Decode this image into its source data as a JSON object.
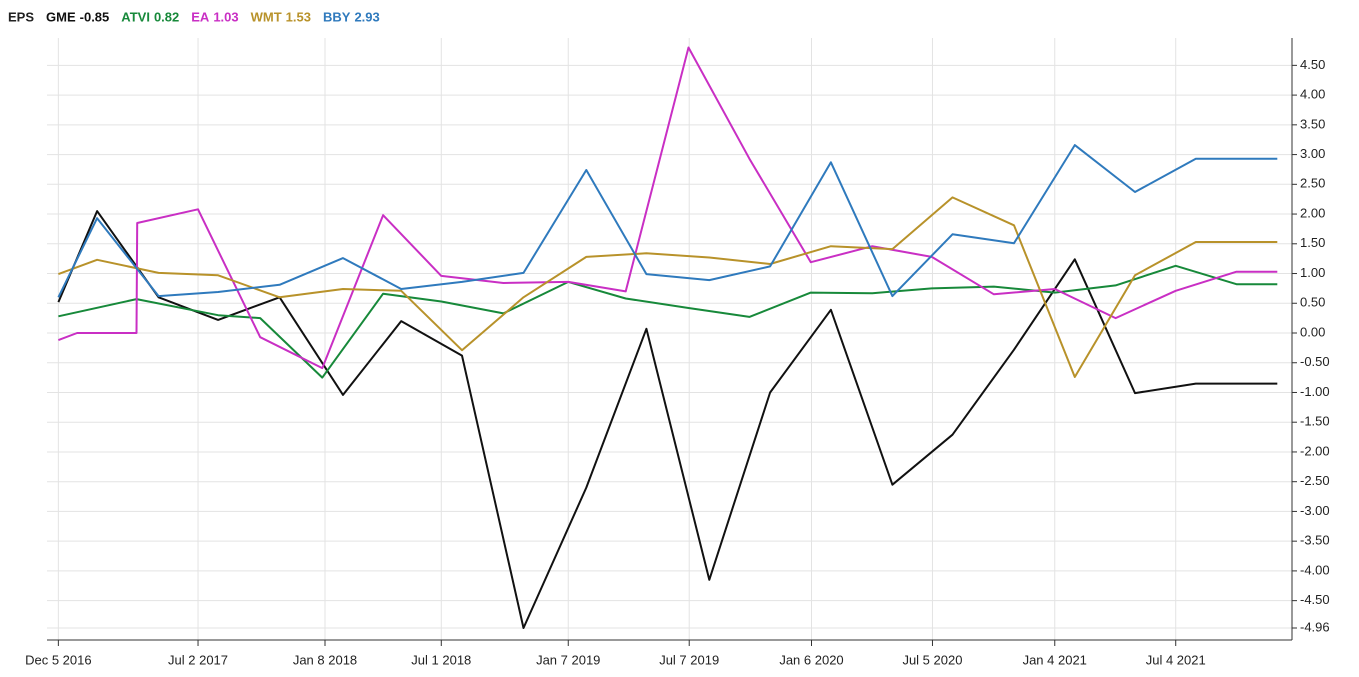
{
  "chart_data": {
    "type": "line",
    "legend_title": "EPS",
    "xlim": [
      "2016-11-18",
      "2021-12-25"
    ],
    "xticks": [
      {
        "value": "2016-12-05",
        "label": "Dec 5 2016"
      },
      {
        "value": "2017-07-02",
        "label": "Jul 2 2017"
      },
      {
        "value": "2018-01-08",
        "label": "Jan 8 2018"
      },
      {
        "value": "2018-07-01",
        "label": "Jul 1 2018"
      },
      {
        "value": "2019-01-07",
        "label": "Jan 7 2019"
      },
      {
        "value": "2019-07-07",
        "label": "Jul 7 2019"
      },
      {
        "value": "2020-01-06",
        "label": "Jan 6 2020"
      },
      {
        "value": "2020-07-05",
        "label": "Jul 5 2020"
      },
      {
        "value": "2021-01-04",
        "label": "Jan 4 2021"
      },
      {
        "value": "2021-07-04",
        "label": "Jul 4 2021"
      }
    ],
    "ylim": [
      -4.96,
      4.96
    ],
    "yticks": [
      {
        "value": 4.5,
        "label": "4.50"
      },
      {
        "value": 4,
        "label": "4.00"
      },
      {
        "value": 3.5,
        "label": "3.50"
      },
      {
        "value": 3,
        "label": "3.00"
      },
      {
        "value": 2.5,
        "label": "2.50"
      },
      {
        "value": 2,
        "label": "2.00"
      },
      {
        "value": 1.5,
        "label": "1.50"
      },
      {
        "value": 1,
        "label": "1.00"
      },
      {
        "value": 0.5,
        "label": "0.50"
      },
      {
        "value": 0,
        "label": "0.00"
      },
      {
        "value": -0.5,
        "label": "-0.50"
      },
      {
        "value": -1,
        "label": "-1.00"
      },
      {
        "value": -1.5,
        "label": "-1.50"
      },
      {
        "value": -2,
        "label": "-2.00"
      },
      {
        "value": -2.5,
        "label": "-2.50"
      },
      {
        "value": -3,
        "label": "-3.00"
      },
      {
        "value": -3.5,
        "label": "-3.50"
      },
      {
        "value": -4,
        "label": "-4.00"
      },
      {
        "value": -4.5,
        "label": "-4.50"
      },
      -4.96
    ],
    "grid": true,
    "series": [
      {
        "name": "GME",
        "color": "#111111",
        "x": [
          "2016-12-05",
          "2017-02-01",
          "2017-05-04",
          "2017-08-01",
          "2017-11-01",
          "2018-02-04",
          "2018-05-02",
          "2018-08-01",
          "2018-11-01",
          "2019-02-03",
          "2019-05-04",
          "2019-08-06",
          "2019-11-05",
          "2020-02-04",
          "2020-05-06",
          "2020-08-04",
          "2020-11-04",
          "2021-02-03",
          "2021-05-04",
          "2021-08-03",
          "2021-12-03"
        ],
        "values": [
          0.52,
          2.05,
          0.6,
          0.22,
          0.6,
          -1.04,
          0.2,
          -0.38,
          -4.96,
          -2.6,
          0.07,
          -4.15,
          -1.0,
          0.39,
          -2.55,
          -1.71,
          -0.28,
          1.24,
          -1.01,
          -0.85,
          -0.85
        ]
      },
      {
        "name": "ATVI",
        "color": "#17893a",
        "x": [
          "2016-12-05",
          "2017-04-01",
          "2017-08-01",
          "2017-10-03",
          "2018-01-04",
          "2018-04-05",
          "2018-07-01",
          "2018-10-02",
          "2019-01-07",
          "2019-04-03",
          "2019-07-06",
          "2019-10-05",
          "2020-01-05",
          "2020-04-06",
          "2020-07-04",
          "2020-10-05",
          "2021-01-04",
          "2021-04-05",
          "2021-07-04",
          "2021-10-03",
          "2021-12-03"
        ],
        "values": [
          0.28,
          0.57,
          0.3,
          0.25,
          -0.75,
          0.66,
          0.53,
          0.33,
          0.86,
          0.58,
          0.42,
          0.27,
          0.68,
          0.67,
          0.75,
          0.78,
          0.68,
          0.8,
          1.13,
          0.82,
          0.82
        ]
      },
      {
        "name": "EA",
        "color": "#c92fc4",
        "x": [
          "2016-12-05",
          "2017-01-02",
          "2017-04-01",
          "2017-04-02",
          "2017-07-02",
          "2017-10-03",
          "2018-01-04",
          "2018-04-05",
          "2018-07-01",
          "2018-10-02",
          "2019-01-07",
          "2019-04-03",
          "2019-07-06",
          "2019-10-05",
          "2020-01-05",
          "2020-04-06",
          "2020-07-04",
          "2020-10-05",
          "2021-01-04",
          "2021-04-05",
          "2021-07-04",
          "2021-10-03",
          "2021-12-03"
        ],
        "values": [
          -0.12,
          0.0,
          0.0,
          1.85,
          2.08,
          -0.07,
          -0.59,
          1.98,
          0.96,
          0.84,
          0.86,
          0.7,
          4.8,
          2.93,
          1.19,
          1.46,
          1.28,
          0.65,
          0.74,
          0.25,
          0.71,
          1.03,
          1.03
        ]
      },
      {
        "name": "WMT",
        "color": "#b8922a",
        "x": [
          "2016-12-05",
          "2017-02-01",
          "2017-05-04",
          "2017-08-01",
          "2017-11-01",
          "2018-02-04",
          "2018-05-02",
          "2018-08-01",
          "2018-11-01",
          "2019-02-03",
          "2019-05-04",
          "2019-08-06",
          "2019-11-05",
          "2020-02-04",
          "2020-05-06",
          "2020-08-04",
          "2020-11-04",
          "2021-02-03",
          "2021-05-04",
          "2021-08-03",
          "2021-12-03"
        ],
        "values": [
          0.99,
          1.23,
          1.01,
          0.97,
          0.6,
          0.74,
          0.71,
          -0.29,
          0.6,
          1.28,
          1.34,
          1.27,
          1.16,
          1.46,
          1.41,
          2.28,
          1.81,
          -0.74,
          0.97,
          1.53,
          1.53
        ]
      },
      {
        "name": "BBY",
        "color": "#2f7abd",
        "x": [
          "2016-12-05",
          "2017-02-01",
          "2017-05-04",
          "2017-08-01",
          "2017-11-01",
          "2018-02-04",
          "2018-05-02",
          "2018-08-01",
          "2018-11-01",
          "2019-02-03",
          "2019-05-04",
          "2019-08-06",
          "2019-11-05",
          "2020-02-04",
          "2020-05-06",
          "2020-08-04",
          "2020-11-04",
          "2021-02-03",
          "2021-05-04",
          "2021-08-03",
          "2021-12-03"
        ],
        "values": [
          0.6,
          1.93,
          0.62,
          0.69,
          0.81,
          1.26,
          0.74,
          0.86,
          1.01,
          2.74,
          0.99,
          0.89,
          1.12,
          2.87,
          0.62,
          1.66,
          1.51,
          3.16,
          2.37,
          2.93,
          2.93
        ]
      }
    ]
  }
}
